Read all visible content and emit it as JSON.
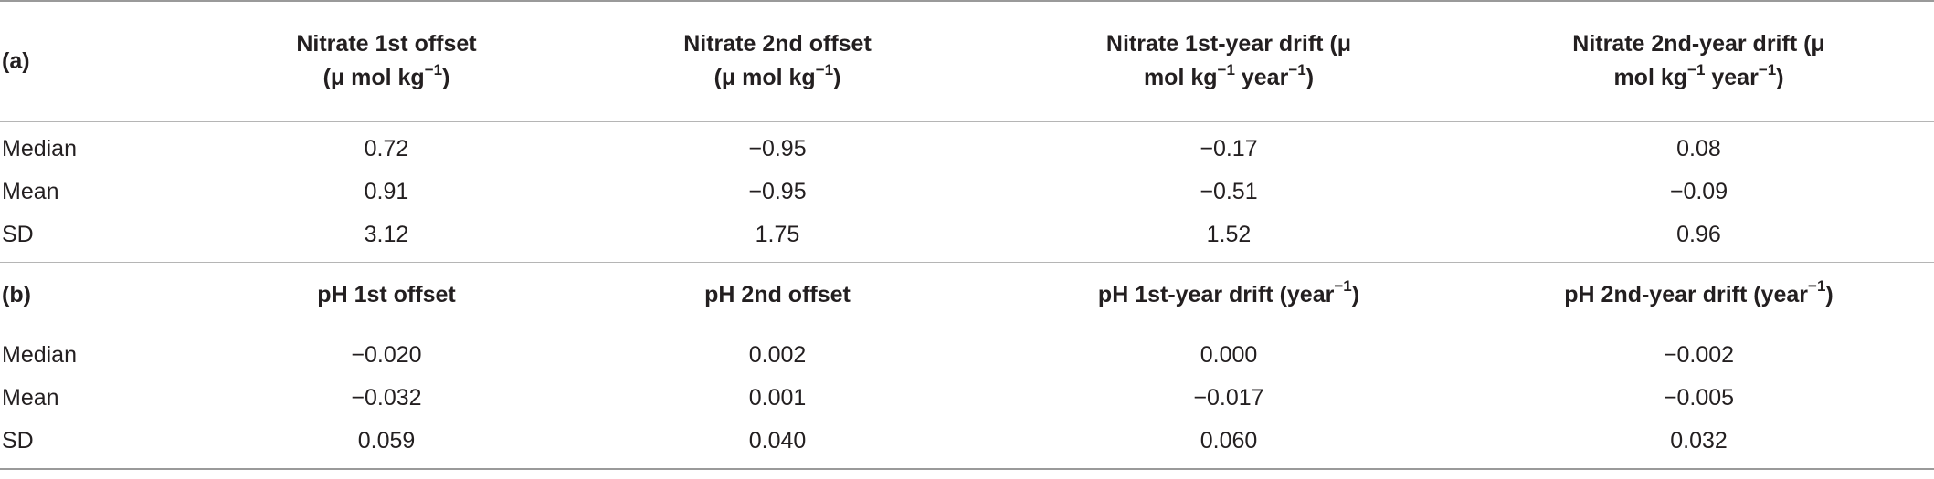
{
  "section_a": {
    "label": "(a)",
    "headers": [
      {
        "main": "Nitrate 1st offset",
        "unit_prefix": "(μ mol kg",
        "unit_exp": "−1",
        "unit_suffix": ")"
      },
      {
        "main": "Nitrate 2nd offset",
        "unit_prefix": "(μ mol kg",
        "unit_exp": "−1",
        "unit_suffix": ")"
      },
      {
        "main": "Nitrate 1st-year drift (μ",
        "unit_prefix": "mol kg",
        "unit_exp": "−1",
        "unit_mid": " year",
        "unit_exp2": "−1",
        "unit_suffix": ")"
      },
      {
        "main": "Nitrate 2nd-year drift (μ",
        "unit_prefix": "mol kg",
        "unit_exp": "−1",
        "unit_mid": " year",
        "unit_exp2": "−1",
        "unit_suffix": ")"
      }
    ],
    "rows": [
      {
        "label": "Median",
        "values": [
          "0.72",
          "−0.95",
          "−0.17",
          "0.08"
        ]
      },
      {
        "label": "Mean",
        "values": [
          "0.91",
          "−0.95",
          "−0.51",
          "−0.09"
        ]
      },
      {
        "label": "SD",
        "values": [
          "3.12",
          "1.75",
          "1.52",
          "0.96"
        ]
      }
    ]
  },
  "section_b": {
    "label": "(b)",
    "headers": [
      {
        "main": "pH 1st offset"
      },
      {
        "main": "pH 2nd offset"
      },
      {
        "main": "pH 1st-year drift (year",
        "exp": "−1",
        "suffix": ")"
      },
      {
        "main": "pH 2nd-year drift (year",
        "exp": "−1",
        "suffix": ")"
      }
    ],
    "rows": [
      {
        "label": "Median",
        "values": [
          "−0.020",
          "0.002",
          "0.000",
          "−0.002"
        ]
      },
      {
        "label": "Mean",
        "values": [
          "−0.032",
          "0.001",
          "−0.017",
          "−0.005"
        ]
      },
      {
        "label": "SD",
        "values": [
          "0.059",
          "0.040",
          "0.060",
          "0.032"
        ]
      }
    ]
  }
}
